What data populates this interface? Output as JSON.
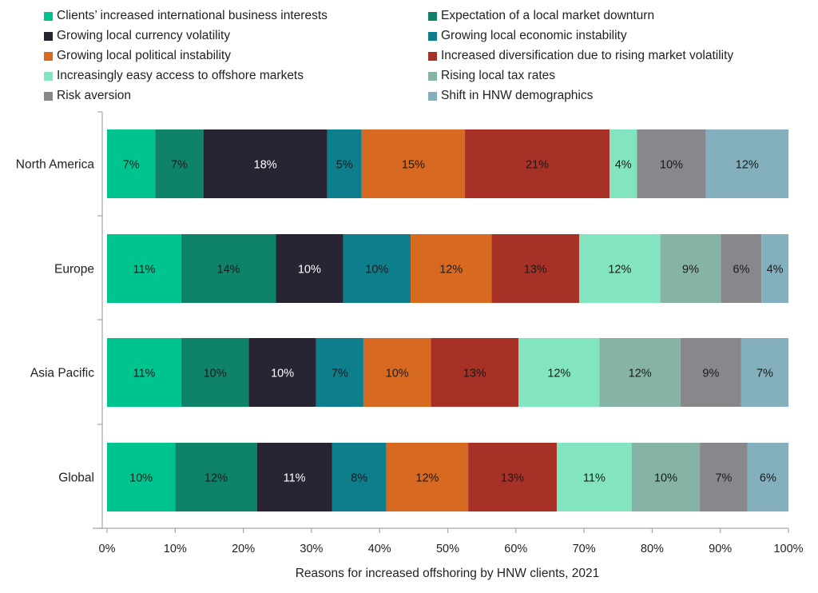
{
  "chart_data": {
    "type": "bar",
    "orientation": "horizontal",
    "stacked": "percent",
    "title": "",
    "xlabel": "Reasons for increased offshoring by HNW clients, 2021",
    "ylabel": "",
    "xlim": [
      0,
      100
    ],
    "x_ticks": [
      "0%",
      "10%",
      "20%",
      "30%",
      "40%",
      "50%",
      "60%",
      "70%",
      "80%",
      "90%",
      "100%"
    ],
    "grid": false,
    "legend_position": "top",
    "categories": [
      "North America",
      "Europe",
      "Asia Pacific",
      "Global"
    ],
    "series": [
      {
        "name": "Clients’ increased international business interests",
        "color": "#00c48f",
        "label_color": "#1a1a1a",
        "values": [
          7,
          11,
          11,
          10
        ]
      },
      {
        "name": "Expectation of a local market downturn",
        "color": "#0e8369",
        "label_color": "#1a1a1a",
        "values": [
          7,
          14,
          10,
          12
        ]
      },
      {
        "name": "Growing local currency volatility",
        "color": "#282433",
        "label_color": "#ffffff",
        "values": [
          18,
          10,
          10,
          11
        ]
      },
      {
        "name": "Growing local economic instability",
        "color": "#0e7d8c",
        "label_color": "#1a1a1a",
        "values": [
          5,
          10,
          7,
          8
        ]
      },
      {
        "name": "Growing local political instability",
        "color": "#d76a20",
        "label_color": "#1a1a1a",
        "values": [
          15,
          12,
          10,
          12
        ]
      },
      {
        "name": "Increased diversification due to rising market volatility",
        "color": "#a83127",
        "label_color": "#1a1a1a",
        "values": [
          21,
          13,
          13,
          13
        ]
      },
      {
        "name": "Increasingly easy access to offshore markets",
        "color": "#83e5c0",
        "label_color": "#1a1a1a",
        "values": [
          4,
          12,
          12,
          11
        ]
      },
      {
        "name": "Rising local tax rates",
        "color": "#85b4a6",
        "label_color": "#1a1a1a",
        "values": [
          0,
          9,
          12,
          10
        ]
      },
      {
        "name": "Risk aversion",
        "color": "#88878c",
        "label_color": "#1a1a1a",
        "values": [
          10,
          6,
          9,
          7
        ]
      },
      {
        "name": "Shift in HNW demographics",
        "color": "#84afbc",
        "label_color": "#1a1a1a",
        "values": [
          12,
          4,
          7,
          6
        ]
      }
    ]
  }
}
